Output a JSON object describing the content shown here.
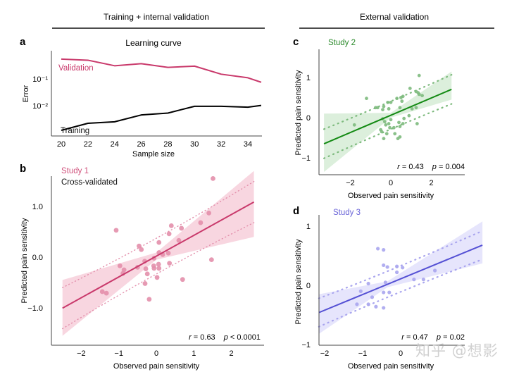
{
  "headers": {
    "left": "Training + internal validation",
    "right": "External validation"
  },
  "watermark": "知乎 @想影",
  "chart_data": [
    {
      "panel": "a",
      "type": "line",
      "title": "Learning curve",
      "xlabel": "Sample size",
      "ylabel": "Error",
      "yscale": "log",
      "x_ticks": [
        20,
        22,
        24,
        26,
        28,
        30,
        32,
        34
      ],
      "y_tick_labels": [
        "10⁻¹",
        "10⁻²"
      ],
      "y_tick_values": [
        0.1,
        0.01
      ],
      "xlim": [
        20,
        35
      ],
      "x": [
        20,
        22,
        24,
        26,
        28,
        30,
        32,
        34,
        35
      ],
      "series": [
        {
          "name": "Validation",
          "color": "#c9396b",
          "values": [
            0.55,
            0.5,
            0.31,
            0.37,
            0.27,
            0.3,
            0.15,
            0.11,
            0.075
          ]
        },
        {
          "name": "Training",
          "color": "#000000",
          "values": [
            0.0012,
            0.0022,
            0.0025,
            0.0045,
            0.0053,
            0.0095,
            0.0095,
            0.0088,
            0.0102
          ]
        }
      ]
    },
    {
      "panel": "b",
      "type": "scatter",
      "label": "Study 1",
      "sublabel": "Cross-validated",
      "label_color": "#d0527c",
      "point_color": "#e38fab",
      "line_color": "#c9396b",
      "band_color": "#f7cfdb",
      "xlabel": "Observed pain sensitivity",
      "ylabel": "Predicted pain sensitivity",
      "x_ticks": [
        -2,
        -1,
        0,
        1,
        2
      ],
      "x_tick_labels": [
        "−2",
        "−1",
        "0",
        "1",
        "2"
      ],
      "y_ticks": [
        1.0,
        0.0,
        -1.0
      ],
      "y_tick_labels": [
        "1.0",
        "0.0",
        "−1.0"
      ],
      "xlim": [
        -2.9,
        2.9
      ],
      "ylim": [
        -1.75,
        1.65
      ],
      "fit": {
        "x_range": [
          -2.5,
          2.6
        ],
        "slope": 0.41,
        "intercept": 0.02,
        "band_lo": [
          -1.55,
          0.4
        ],
        "band_hi": [
          -0.45,
          1.7
        ],
        "pi_offset": 0.3
      },
      "stats": {
        "r": "r = 0.63",
        "p": "p < 0.0001"
      },
      "points": [
        [
          1.51,
          1.55
        ],
        [
          1.4,
          0.87
        ],
        [
          1.18,
          0.68
        ],
        [
          0.67,
          0.57
        ],
        [
          0.4,
          0.62
        ],
        [
          0.34,
          0.46
        ],
        [
          0.6,
          0.33
        ],
        [
          0.07,
          0.29
        ],
        [
          -1.07,
          0.53
        ],
        [
          -0.46,
          0.22
        ],
        [
          -0.4,
          0.15
        ],
        [
          0.07,
          0.09
        ],
        [
          0.17,
          0.05
        ],
        [
          0.32,
          0.08
        ],
        [
          -0.06,
          -0.02
        ],
        [
          0.35,
          -0.12
        ],
        [
          -0.31,
          -0.08
        ],
        [
          0.06,
          -0.14
        ],
        [
          -0.07,
          -0.17
        ],
        [
          -0.97,
          -0.17
        ],
        [
          -0.86,
          -0.25
        ],
        [
          -0.89,
          -0.32
        ],
        [
          -0.28,
          -0.23
        ],
        [
          0.07,
          -0.22
        ],
        [
          -0.06,
          -0.22
        ],
        [
          -0.24,
          -0.33
        ],
        [
          0.02,
          -0.4
        ],
        [
          -0.3,
          -0.52
        ],
        [
          0.7,
          -0.44
        ],
        [
          1.47,
          -0.05
        ],
        [
          -0.19,
          -0.83
        ],
        [
          -1.44,
          -0.68
        ],
        [
          -1.33,
          -0.71
        ],
        [
          -0.5,
          -0.2
        ]
      ]
    },
    {
      "panel": "c",
      "type": "scatter",
      "label": "Study 2",
      "label_color": "#2a8a2a",
      "point_color": "#7dba7d",
      "line_color": "#138a13",
      "band_color": "#d6ecd6",
      "xlabel": "Observed pain sensitivity",
      "ylabel": "Predicted pain sensitivity",
      "x_ticks": [
        -2,
        0,
        2
      ],
      "x_tick_labels": [
        "−2",
        "0",
        "2"
      ],
      "y_ticks": [
        1,
        0,
        -1
      ],
      "y_tick_labels": [
        "1",
        "0",
        "−1"
      ],
      "xlim": [
        -3.6,
        3.7
      ],
      "ylim": [
        -1.48,
        1.65
      ],
      "fit": {
        "x_range": [
          -3.3,
          3.0
        ],
        "slope": 0.215,
        "intercept": 0.06,
        "band_lo": [
          -1.35,
          0.45
        ],
        "band_hi": [
          0.1,
          1.15
        ],
        "pi_offset": 0.33
      },
      "stats": {
        "r": "r = 0.43",
        "p": "p = 0.004"
      },
      "points": [
        [
          1.4,
          1.05
        ],
        [
          0.95,
          0.73
        ],
        [
          1.25,
          0.65
        ],
        [
          1.4,
          0.58
        ],
        [
          1.55,
          0.55
        ],
        [
          1.35,
          0.62
        ],
        [
          -1.2,
          0.48
        ],
        [
          0.6,
          0.53
        ],
        [
          0.5,
          0.5
        ],
        [
          0.3,
          0.48
        ],
        [
          0.55,
          0.41
        ],
        [
          0.0,
          0.38
        ],
        [
          -0.15,
          0.38
        ],
        [
          -0.65,
          0.25
        ],
        [
          -0.75,
          0.25
        ],
        [
          -0.35,
          0.28
        ],
        [
          -0.4,
          0.2
        ],
        [
          -0.1,
          0.22
        ],
        [
          0.45,
          0.25
        ],
        [
          1.05,
          0.22
        ],
        [
          1.25,
          0.25
        ],
        [
          -1.8,
          -0.18
        ],
        [
          -0.4,
          -0.03
        ],
        [
          -0.3,
          -0.1
        ],
        [
          -0.25,
          -0.18
        ],
        [
          -0.1,
          -0.15
        ],
        [
          0.0,
          -0.05
        ],
        [
          0.65,
          -0.02
        ],
        [
          0.9,
          0.05
        ],
        [
          0.4,
          -0.12
        ],
        [
          0.6,
          -0.15
        ],
        [
          -0.05,
          -0.25
        ],
        [
          0.45,
          -0.22
        ],
        [
          1.3,
          -0.15
        ],
        [
          -0.5,
          -0.3
        ],
        [
          -0.2,
          -0.4
        ],
        [
          0.2,
          -0.4
        ],
        [
          0.45,
          -0.48
        ],
        [
          0.35,
          -0.52
        ],
        [
          -0.35,
          -0.52
        ],
        [
          0.15,
          -0.25
        ],
        [
          -0.45,
          -0.35
        ]
      ]
    },
    {
      "panel": "d",
      "type": "scatter",
      "label": "Study 3",
      "label_color": "#6a64d8",
      "point_color": "#a9a5ee",
      "line_color": "#5450d4",
      "band_color": "#e2e1fb",
      "xlabel": "Observed pain sensitivity",
      "ylabel": "Predicted pain sensitivity",
      "x_ticks": [
        -2,
        -1,
        0
      ],
      "x_tick_labels": [
        "−2",
        "−1",
        "0"
      ],
      "y_ticks": [
        1,
        0,
        -1
      ],
      "y_tick_labels": [
        "1",
        "0",
        "−1"
      ],
      "xlim": [
        -2.33,
        2.95
      ],
      "ylim": [
        -1.0,
        1.12
      ],
      "fit": {
        "x_range": [
          -2.15,
          2.15
        ],
        "slope": 0.265,
        "intercept": 0.11,
        "band_lo": [
          -0.82,
          0.37
        ],
        "band_hi": [
          -0.15,
          1.08
        ],
        "pi_offset": 0.2
      },
      "stats": {
        "r": "r = 0.47",
        "p": "p = 0.02"
      },
      "points": [
        [
          -0.6,
          0.62
        ],
        [
          -0.45,
          0.6
        ],
        [
          -0.45,
          0.34
        ],
        [
          -0.35,
          0.31
        ],
        [
          -0.1,
          0.32
        ],
        [
          0.05,
          0.3
        ],
        [
          -0.1,
          0.22
        ],
        [
          0.9,
          0.25
        ],
        [
          -0.4,
          0.05
        ],
        [
          -0.85,
          0.03
        ],
        [
          -1.05,
          -0.1
        ],
        [
          -0.45,
          -0.12
        ],
        [
          -0.3,
          -0.12
        ],
        [
          0.35,
          0.1
        ],
        [
          -0.75,
          -0.2
        ],
        [
          -1.15,
          -0.32
        ],
        [
          -0.85,
          -0.32
        ],
        [
          -0.65,
          -0.36
        ],
        [
          -0.45,
          -0.38
        ],
        [
          0.6,
          0.1
        ]
      ]
    }
  ]
}
